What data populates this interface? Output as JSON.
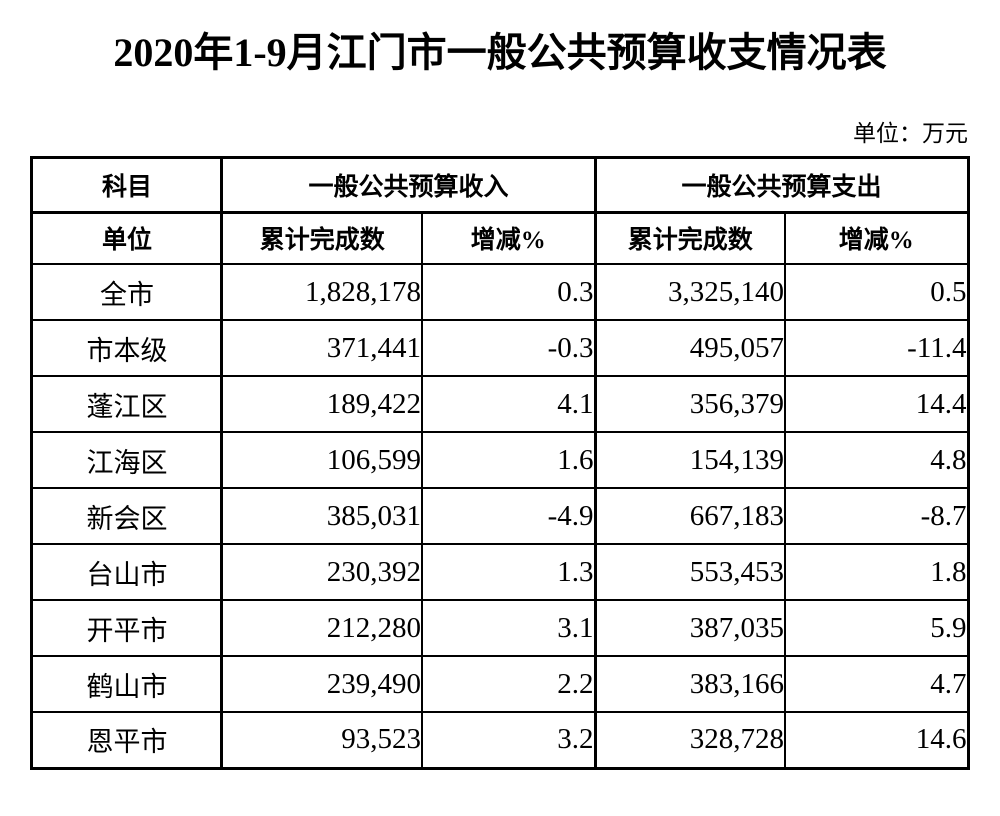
{
  "page": {
    "title": "2020年1-9月江门市一般公共预算收支情况表",
    "unit_label": "单位：万元"
  },
  "colors": {
    "text": "#000000",
    "background": "#ffffff",
    "border": "#000000"
  },
  "table": {
    "header": {
      "subject": "科目",
      "revenue_group": "一般公共预算收入",
      "expenditure_group": "一般公共预算支出",
      "unit_col": "单位",
      "completed": "累计完成数",
      "change_pct": "增减%"
    },
    "rows": [
      {
        "name": "全市",
        "revenue": "1,828,178",
        "revenue_change": "0.3",
        "expenditure": "3,325,140",
        "expenditure_change": "0.5"
      },
      {
        "name": "市本级",
        "revenue": "371,441",
        "revenue_change": "-0.3",
        "expenditure": "495,057",
        "expenditure_change": "-11.4"
      },
      {
        "name": "蓬江区",
        "revenue": "189,422",
        "revenue_change": "4.1",
        "expenditure": "356,379",
        "expenditure_change": "14.4"
      },
      {
        "name": "江海区",
        "revenue": "106,599",
        "revenue_change": "1.6",
        "expenditure": "154,139",
        "expenditure_change": "4.8"
      },
      {
        "name": "新会区",
        "revenue": "385,031",
        "revenue_change": "-4.9",
        "expenditure": "667,183",
        "expenditure_change": "-8.7"
      },
      {
        "name": "台山市",
        "revenue": "230,392",
        "revenue_change": "1.3",
        "expenditure": "553,453",
        "expenditure_change": "1.8"
      },
      {
        "name": "开平市",
        "revenue": "212,280",
        "revenue_change": "3.1",
        "expenditure": "387,035",
        "expenditure_change": "5.9"
      },
      {
        "name": "鹤山市",
        "revenue": "239,490",
        "revenue_change": "2.2",
        "expenditure": "383,166",
        "expenditure_change": "4.7"
      },
      {
        "name": "恩平市",
        "revenue": "93,523",
        "revenue_change": "3.2",
        "expenditure": "328,728",
        "expenditure_change": "14.6"
      }
    ]
  }
}
